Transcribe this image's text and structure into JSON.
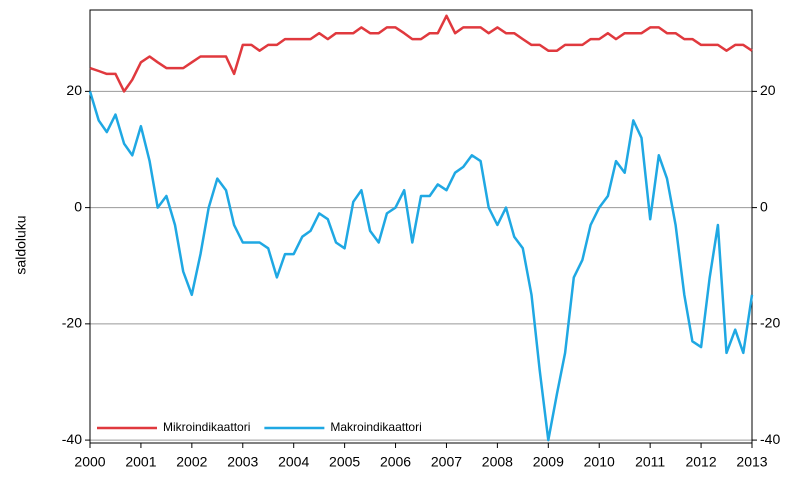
{
  "chart_data": {
    "type": "line",
    "ylabel": "saldoluku",
    "x": [
      2000,
      2000.17,
      2000.33,
      2000.5,
      2000.67,
      2000.83,
      2001,
      2001.17,
      2001.33,
      2001.5,
      2001.67,
      2001.83,
      2002,
      2002.17,
      2002.33,
      2002.5,
      2002.67,
      2002.83,
      2003,
      2003.17,
      2003.33,
      2003.5,
      2003.67,
      2003.83,
      2004,
      2004.17,
      2004.33,
      2004.5,
      2004.67,
      2004.83,
      2005,
      2005.17,
      2005.33,
      2005.5,
      2005.67,
      2005.83,
      2006,
      2006.17,
      2006.33,
      2006.5,
      2006.67,
      2006.83,
      2007,
      2007.17,
      2007.33,
      2007.5,
      2007.67,
      2007.83,
      2008,
      2008.17,
      2008.33,
      2008.5,
      2008.67,
      2008.83,
      2009,
      2009.17,
      2009.33,
      2009.5,
      2009.67,
      2009.83,
      2010,
      2010.17,
      2010.33,
      2010.5,
      2010.67,
      2010.83,
      2011,
      2011.17,
      2011.33,
      2011.5,
      2011.67,
      2011.83,
      2012,
      2012.17,
      2012.33,
      2012.5,
      2012.67,
      2012.83,
      2013
    ],
    "series": [
      {
        "name": "Mikroindikaattori",
        "color": "#e0393e",
        "values": [
          24,
          23.5,
          23,
          23,
          20,
          22,
          25,
          26,
          25,
          24,
          24,
          24,
          25,
          26,
          26,
          26,
          26,
          23,
          28,
          28,
          27,
          28,
          28,
          29,
          29,
          29,
          29,
          30,
          29,
          30,
          30,
          30,
          31,
          30,
          30,
          31,
          31,
          30,
          29,
          29,
          30,
          30,
          33,
          30,
          31,
          31,
          31,
          30,
          31,
          30,
          30,
          29,
          28,
          28,
          27,
          27,
          28,
          28,
          28,
          29,
          29,
          30,
          29,
          30,
          30,
          30,
          31,
          31,
          30,
          30,
          29,
          29,
          28,
          28,
          28,
          27,
          28,
          28,
          27
        ]
      },
      {
        "name": "Makroindikaattori",
        "color": "#1fa8e3",
        "values": [
          20,
          15,
          13,
          16,
          11,
          9,
          14,
          8,
          0,
          2,
          -3,
          -11,
          -15,
          -8,
          0,
          5,
          3,
          -3,
          -6,
          -6,
          -6,
          -7,
          -12,
          -8,
          -8,
          -5,
          -4,
          -1,
          -2,
          -6,
          -7,
          1,
          3,
          -4,
          -6,
          -1,
          0,
          3,
          -6,
          2,
          2,
          4,
          3,
          6,
          7,
          9,
          8,
          0,
          -3,
          0,
          -5,
          -7,
          -15,
          -28,
          -40,
          -32,
          -25,
          -12,
          -9,
          -3,
          0,
          2,
          8,
          6,
          15,
          12,
          -2,
          9,
          5,
          -3,
          -15,
          -23,
          -24,
          -12,
          -3,
          -25,
          -21,
          -25,
          -15
        ]
      }
    ],
    "xlim": [
      2000,
      2013
    ],
    "xticks": [
      2000,
      2001,
      2002,
      2003,
      2004,
      2005,
      2006,
      2007,
      2008,
      2009,
      2010,
      2011,
      2012,
      2013
    ],
    "ylim": [
      -40.5,
      34
    ],
    "yticks": [
      -40,
      -20,
      0,
      20
    ],
    "y2lim": [
      -40.5,
      34
    ],
    "y2ticks": [
      -40,
      -20,
      0,
      20
    ],
    "grid": true
  }
}
